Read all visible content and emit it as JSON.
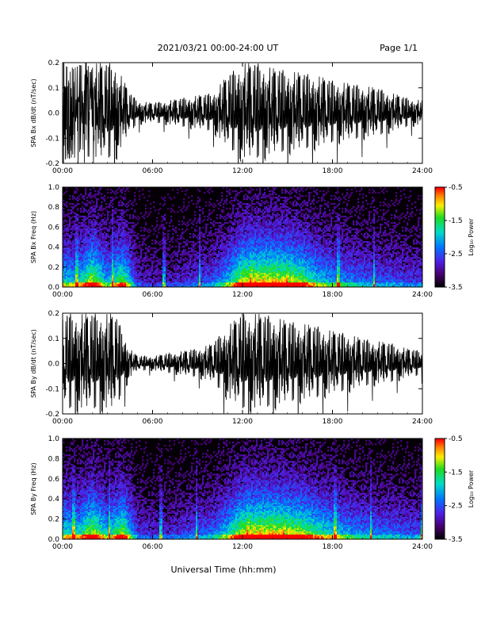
{
  "header": {
    "title": "2021/03/21  00:00-24:00 UT",
    "page": "Page 1/1"
  },
  "xlabel": "Universal Time (hh:mm)",
  "colorbar": {
    "label": "Log₁₀ Power",
    "ticks": [
      "-0.5",
      "-1.5",
      "-2.5",
      "-3.5"
    ],
    "range": [
      -3.5,
      -0.5
    ]
  },
  "colors": {
    "background": "#ffffff",
    "trace": "#000000",
    "spectrogram_bg": "#050005"
  },
  "chart_data": [
    {
      "type": "line",
      "ylabel": "SPA Bx dB/dt (nT/sec)",
      "xlim": [
        0,
        24
      ],
      "ylim": [
        -0.2,
        0.2
      ],
      "xticks": [
        "00:00",
        "06:00",
        "12:00",
        "18:00",
        "24:00"
      ],
      "yticks": [
        "-0.2",
        "-0.1",
        "0.0",
        "0.1",
        "0.2"
      ],
      "series": [
        {
          "x_hours": [
            0,
            1,
            2,
            3,
            3.5,
            4.5,
            5,
            6,
            7,
            8,
            9,
            10,
            11,
            12,
            13,
            14,
            15,
            16,
            17,
            18,
            19,
            20,
            21,
            22,
            23,
            24
          ],
          "amplitude": [
            0.2,
            0.2,
            0.2,
            0.2,
            0.2,
            0.08,
            0.05,
            0.04,
            0.05,
            0.06,
            0.07,
            0.08,
            0.15,
            0.2,
            0.2,
            0.18,
            0.17,
            0.16,
            0.15,
            0.13,
            0.12,
            0.11,
            0.1,
            0.08,
            0.06,
            0.05
          ]
        }
      ]
    },
    {
      "type": "heatmap",
      "ylabel": "SPA Bx Freq (Hz)",
      "xlim": [
        0,
        24
      ],
      "ylim": [
        0,
        1.0
      ],
      "xticks": [
        "00:00",
        "06:00",
        "12:00",
        "18:00",
        "24:00"
      ],
      "yticks": [
        "0.0",
        "0.2",
        "0.4",
        "0.6",
        "0.8",
        "1.0"
      ],
      "zlim": [
        -3.5,
        -0.5
      ],
      "activity_hours": [
        0,
        1,
        2,
        3,
        4,
        5,
        6,
        7,
        8,
        9,
        10,
        11,
        12,
        13,
        14,
        15,
        16,
        17,
        18,
        19,
        20,
        21,
        22,
        23,
        24
      ],
      "activity_level": [
        0.6,
        0.55,
        0.9,
        0.5,
        0.8,
        0.25,
        0.2,
        0.2,
        0.25,
        0.3,
        0.35,
        0.55,
        0.9,
        0.95,
        0.95,
        0.9,
        0.8,
        0.6,
        0.5,
        0.45,
        0.4,
        0.35,
        0.35,
        0.3,
        0.3
      ]
    },
    {
      "type": "line",
      "ylabel": "SPA By dB/dt (nT/sec)",
      "xlim": [
        0,
        24
      ],
      "ylim": [
        -0.2,
        0.2
      ],
      "xticks": [
        "00:00",
        "06:00",
        "12:00",
        "18:00",
        "24:00"
      ],
      "yticks": [
        "-0.2",
        "-0.1",
        "0.0",
        "0.1",
        "0.2"
      ],
      "series": [
        {
          "x_hours": [
            0,
            1,
            2,
            3,
            3.5,
            4.5,
            5,
            6,
            7,
            8,
            9,
            10,
            11,
            12,
            13,
            14,
            15,
            16,
            17,
            18,
            19,
            20,
            21,
            22,
            23,
            24
          ],
          "amplitude": [
            0.2,
            0.2,
            0.2,
            0.2,
            0.2,
            0.06,
            0.03,
            0.03,
            0.04,
            0.05,
            0.06,
            0.08,
            0.15,
            0.2,
            0.2,
            0.19,
            0.17,
            0.16,
            0.15,
            0.13,
            0.12,
            0.1,
            0.09,
            0.08,
            0.06,
            0.05
          ]
        }
      ]
    },
    {
      "type": "heatmap",
      "ylabel": "SPA By Freq (Hz)",
      "xlim": [
        0,
        24
      ],
      "ylim": [
        0,
        1.0
      ],
      "xticks": [
        "00:00",
        "06:00",
        "12:00",
        "18:00",
        "24:00"
      ],
      "yticks": [
        "0.0",
        "0.2",
        "0.4",
        "0.6",
        "0.8",
        "1.0"
      ],
      "zlim": [
        -3.5,
        -0.5
      ],
      "activity_hours": [
        0,
        1,
        2,
        3,
        4,
        5,
        6,
        7,
        8,
        9,
        10,
        11,
        12,
        13,
        14,
        15,
        16,
        17,
        18,
        19,
        20,
        21,
        22,
        23,
        24
      ],
      "activity_level": [
        0.65,
        0.6,
        0.9,
        0.55,
        0.85,
        0.3,
        0.25,
        0.25,
        0.3,
        0.35,
        0.4,
        0.6,
        0.9,
        0.95,
        0.95,
        0.9,
        0.85,
        0.7,
        0.6,
        0.5,
        0.45,
        0.4,
        0.4,
        0.35,
        0.35
      ]
    }
  ]
}
